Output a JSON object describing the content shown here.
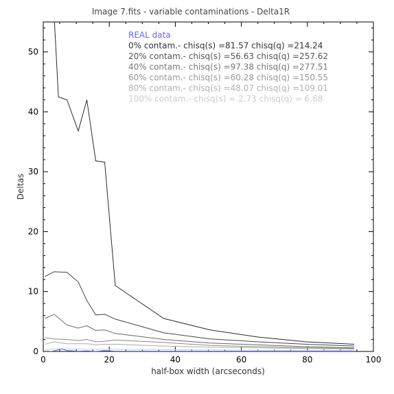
{
  "chart_data": {
    "type": "line",
    "title": "Image 7.fits - variable contaminations - Delta1R",
    "xlabel": "half-box width (arcseconds)",
    "ylabel": "Deltas",
    "xlim": [
      0,
      100
    ],
    "ylim": [
      0,
      55
    ],
    "x_ticks": [
      0,
      20,
      40,
      60,
      80,
      100
    ],
    "y_ticks": [
      0,
      10,
      20,
      30,
      40,
      50
    ],
    "legend_position": "top",
    "legend": [
      {
        "text": "REAL data",
        "color": "#6666ff"
      },
      {
        "text": "0% contam.- chisq(s) =81.57 chisq(q) =214.24",
        "color": "#333333"
      },
      {
        "text": "20% contam.- chisq(s) =56.63 chisq(q) =257.62",
        "color": "#555555"
      },
      {
        "text": "40% contam.- chisq(s) =97.38 chisq(q) =277.51",
        "color": "#777777"
      },
      {
        "text": "60% contam.- chisq(s) =60.28 chisq(q) =150.55",
        "color": "#999999"
      },
      {
        "text": "80% contam.- chisq(s) =48.07 chisq(q) =109.01",
        "color": "#b0b0b0"
      },
      {
        "text": "100% contam.- chisq(s) = 2.73 chisq(q) = 6.68",
        "color": "#cccccc"
      }
    ],
    "series": [
      {
        "color": "#2a2a2a",
        "points": [
          [
            3.3,
            56
          ],
          [
            4.6,
            42.5
          ],
          [
            7.2,
            42
          ],
          [
            10.6,
            36.8
          ],
          [
            13.2,
            42
          ],
          [
            15.9,
            31.8
          ],
          [
            18.6,
            31.6
          ],
          [
            21.8,
            11
          ],
          [
            36.5,
            5.5
          ],
          [
            50.5,
            3.6
          ],
          [
            65.2,
            2.4
          ],
          [
            79.6,
            1.6
          ],
          [
            94.2,
            1.2
          ]
        ]
      },
      {
        "color": "#444444",
        "points": [
          [
            0.5,
            12.5
          ],
          [
            3.3,
            13.3
          ],
          [
            7.2,
            13.2
          ],
          [
            10.6,
            11.6
          ],
          [
            13.2,
            8.5
          ],
          [
            15.9,
            6.1
          ],
          [
            18.6,
            6.2
          ],
          [
            21.8,
            5.4
          ],
          [
            36.5,
            3.1
          ],
          [
            50.5,
            2.1
          ],
          [
            65.2,
            1.6
          ],
          [
            79.6,
            1.2
          ],
          [
            94.2,
            0.9
          ]
        ]
      },
      {
        "color": "#666666",
        "points": [
          [
            0.5,
            5.5
          ],
          [
            3.3,
            6.2
          ],
          [
            7.2,
            4.4
          ],
          [
            10.6,
            3.9
          ],
          [
            13.2,
            4.3
          ],
          [
            15.9,
            3.5
          ],
          [
            18.6,
            3.6
          ],
          [
            21.8,
            3.0
          ],
          [
            36.5,
            2.0
          ],
          [
            50.5,
            1.4
          ],
          [
            65.2,
            1.1
          ],
          [
            79.6,
            0.8
          ],
          [
            94.2,
            0.6
          ]
        ]
      },
      {
        "color": "#888888",
        "points": [
          [
            0.5,
            2.3
          ],
          [
            3.3,
            2.1
          ],
          [
            7.2,
            2.0
          ],
          [
            10.6,
            1.8
          ],
          [
            13.2,
            2.0
          ],
          [
            15.9,
            1.6
          ],
          [
            18.6,
            1.7
          ],
          [
            21.8,
            1.9
          ],
          [
            36.5,
            1.5
          ],
          [
            50.5,
            1.0
          ],
          [
            65.2,
            0.8
          ],
          [
            79.6,
            0.6
          ],
          [
            94.2,
            0.5
          ]
        ]
      },
      {
        "color": "#aaaaaa",
        "points": [
          [
            0.5,
            1.2
          ],
          [
            3.3,
            1.6
          ],
          [
            7.2,
            1.3
          ],
          [
            10.6,
            1.3
          ],
          [
            13.2,
            1.3
          ],
          [
            15.9,
            1.1
          ],
          [
            18.6,
            1.2
          ],
          [
            21.8,
            1.2
          ],
          [
            36.5,
            0.9
          ],
          [
            50.5,
            0.7
          ],
          [
            65.2,
            0.6
          ],
          [
            79.6,
            0.5
          ],
          [
            94.2,
            0.4
          ]
        ]
      },
      {
        "color": "#cccccc",
        "points": [
          [
            0.5,
            0.3
          ],
          [
            3.3,
            0.4
          ],
          [
            7.2,
            0.4
          ],
          [
            10.6,
            0.4
          ],
          [
            13.2,
            0.35
          ],
          [
            15.9,
            0.35
          ],
          [
            18.6,
            0.35
          ],
          [
            21.8,
            0.35
          ],
          [
            36.5,
            0.3
          ],
          [
            50.5,
            0.25
          ],
          [
            65.2,
            0.2
          ],
          [
            79.6,
            0.2
          ],
          [
            94.2,
            0.15
          ]
        ]
      },
      {
        "color": "#6666ff",
        "points": [
          [
            0.5,
            -0.2
          ],
          [
            3.3,
            0.1
          ],
          [
            5.5,
            0.45
          ],
          [
            7.2,
            0.15
          ],
          [
            10.6,
            0.05
          ],
          [
            13.2,
            0.1
          ],
          [
            15.9,
            0.0
          ],
          [
            18.6,
            0.15
          ],
          [
            21.8,
            0.05
          ],
          [
            36.5,
            0.05
          ],
          [
            50.5,
            0.05
          ],
          [
            65.2,
            0.05
          ],
          [
            79.6,
            0.05
          ],
          [
            94.2,
            0.05
          ]
        ]
      }
    ]
  }
}
